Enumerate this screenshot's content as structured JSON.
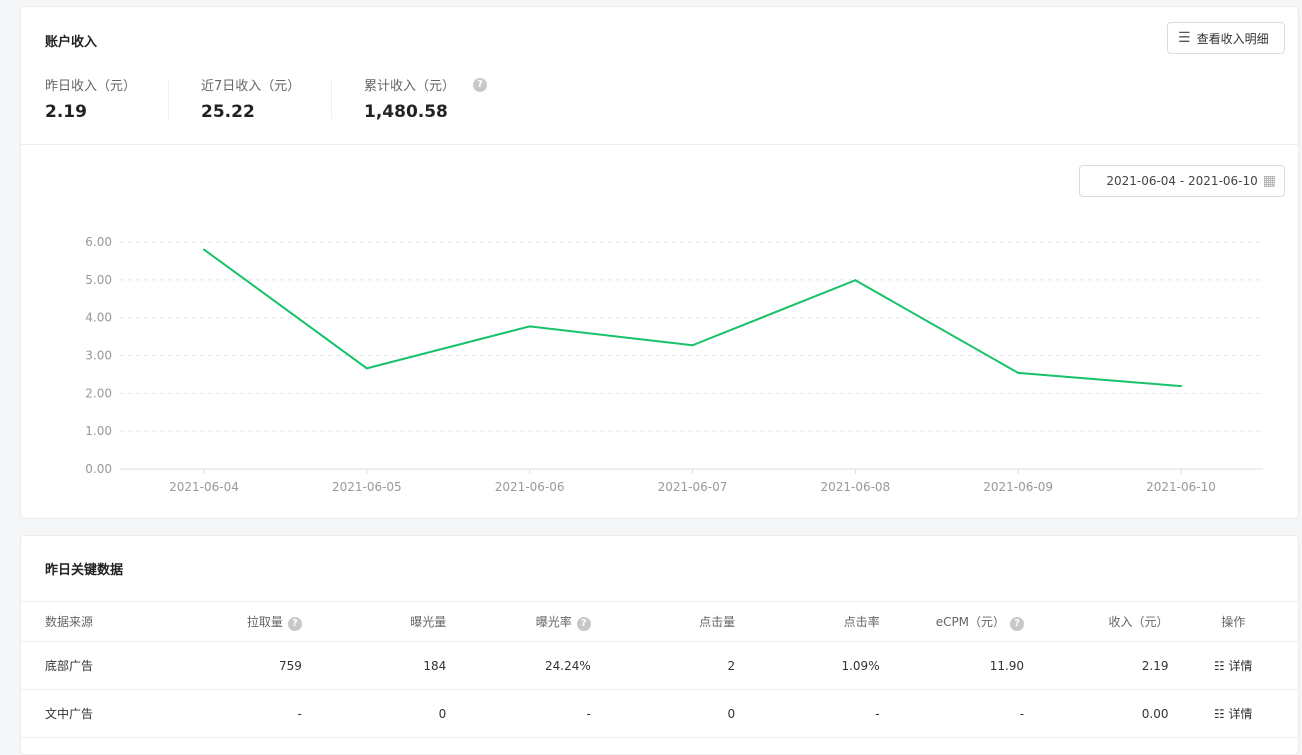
{
  "income": {
    "title": "账户收入",
    "detail_button": "查看收入明细",
    "stats": [
      {
        "label": "昨日收入（元）",
        "value": "2.19"
      },
      {
        "label": "近7日收入（元）",
        "value": "25.22"
      },
      {
        "label": "累计收入（元）",
        "value": "1,480.58",
        "help": true
      }
    ],
    "date_range": "2021-06-04 - 2021-06-10"
  },
  "chart_data": {
    "type": "line",
    "x": [
      "2021-06-04",
      "2021-06-05",
      "2021-06-06",
      "2021-06-07",
      "2021-06-08",
      "2021-06-09",
      "2021-06-10"
    ],
    "values": [
      5.8,
      2.66,
      3.77,
      3.27,
      4.99,
      2.54,
      2.19
    ],
    "yticks": [
      "0.00",
      "1.00",
      "2.00",
      "3.00",
      "4.00",
      "5.00",
      "6.00"
    ],
    "ylim": [
      0,
      6
    ],
    "grid": true,
    "color": "#17c26b"
  },
  "key_data": {
    "title": "昨日关键数据",
    "columns": [
      "数据来源",
      "拉取量",
      "曝光量",
      "曝光率",
      "点击量",
      "点击率",
      "eCPM（元）",
      "收入（元）",
      "操作"
    ],
    "help_columns": [
      1,
      3,
      6
    ],
    "rows": [
      [
        "底部广告",
        "759",
        "184",
        "24.24%",
        "2",
        "1.09%",
        "11.90",
        "2.19"
      ],
      [
        "文中广告",
        "-",
        "0",
        "-",
        "0",
        "-",
        "-",
        "0.00"
      ]
    ],
    "action_label": "详情"
  }
}
